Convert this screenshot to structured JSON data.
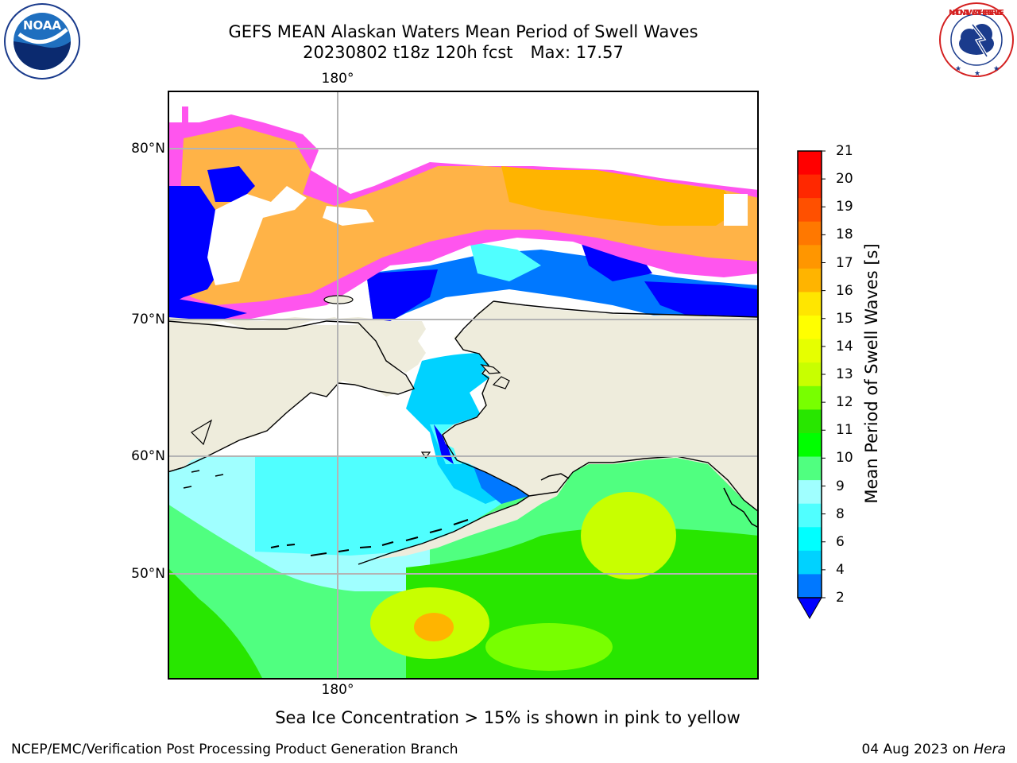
{
  "title": {
    "line1": "GEFS MEAN Alaskan Waters Mean Period of Swell Waves",
    "run": "20230802 t18z 120h fcst",
    "max": "Max: 17.57"
  },
  "map": {
    "lat_labels": [
      "80°N",
      "70°N",
      "60°N",
      "50°N"
    ],
    "lon_label_top": "180°",
    "lon_label_bottom": "180°",
    "colors": {
      "land": "#eeecdc",
      "grid": "#b4b4b4",
      "coast": "#000000",
      "ice_pink": "#ff55ee",
      "ice_orange": "#ffb347",
      "ice_magenta": "#ff44ff"
    }
  },
  "colorbar": {
    "label": "Mean Period of Swell Waves [s]",
    "ticks": [
      "21",
      "20",
      "19",
      "18",
      "17",
      "16",
      "15",
      "14",
      "13",
      "12",
      "11",
      "10",
      "9",
      "8",
      "6",
      "4",
      "2"
    ],
    "colors_top_to_bottom": [
      "#ff0000",
      "#ff2800",
      "#ff5000",
      "#ff7800",
      "#ff9600",
      "#ffb400",
      "#ffe600",
      "#ffff00",
      "#e6ff00",
      "#c8ff00",
      "#78ff00",
      "#28e600",
      "#00ff00",
      "#50ff80",
      "#a0ffff",
      "#50ffff",
      "#00ffff",
      "#00d2ff",
      "#0078ff"
    ],
    "extend_color": "#0000ff"
  },
  "note": "Sea Ice Concentration > 15% is shown in pink to yellow",
  "footer": {
    "left": "NCEP/EMC/Verification Post Processing Product Generation Branch",
    "date": "04 Aug 2023 on",
    "host": "Hera"
  },
  "logos": {
    "left": "noaa-logo",
    "left_text": "NOAA",
    "right": "nws-logo",
    "right_text": "NATIONAL WEATHER SERVICE"
  }
}
